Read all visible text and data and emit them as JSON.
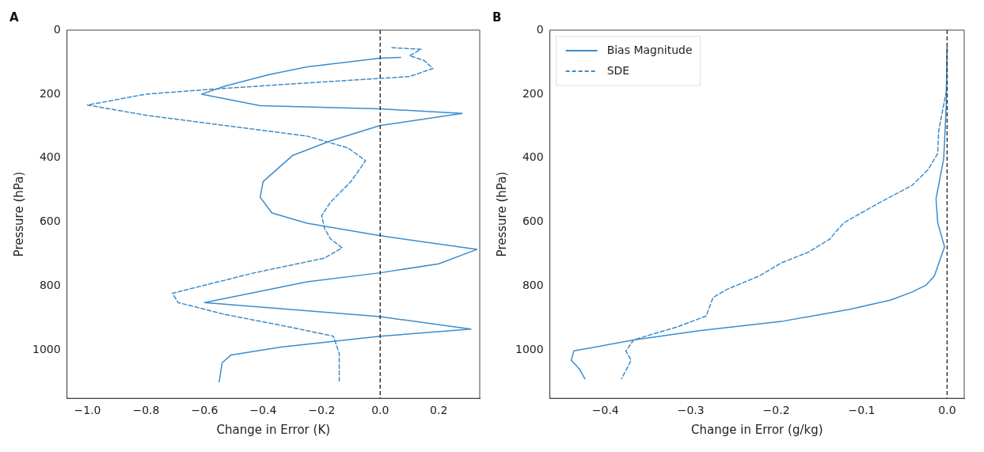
{
  "chart_data": [
    {
      "type": "line",
      "title": "A",
      "xlabel": "Change in Error (K)",
      "ylabel": "Pressure (hPa)",
      "xlim": [
        -1.07,
        0.34
      ],
      "ylim": [
        1150,
        0
      ],
      "xticks": [
        {
          "value": -1,
          "label": "−1.0"
        },
        {
          "value": -0.8,
          "label": "−0.8"
        },
        {
          "value": -0.6,
          "label": "−0.6"
        },
        {
          "value": -0.4,
          "label": "−0.4"
        },
        {
          "value": -0.2,
          "label": "−0.2"
        },
        {
          "value": 0,
          "label": "0.0"
        },
        0.2
      ],
      "yticks": [
        0,
        200,
        400,
        600,
        800,
        1000
      ],
      "grid": false,
      "legend": false,
      "marker": "none",
      "ref_lines": [
        {
          "axis": "x",
          "value": 0,
          "color": "#333333",
          "line_style": "dashed"
        }
      ],
      "series": [
        {
          "color": "#3d8ccb",
          "line_style": "solid",
          "x": [
            0.07,
            0,
            -0.25,
            -0.38,
            -0.53,
            -0.61,
            -0.41,
            0,
            0.28,
            0,
            -0.17,
            -0.3,
            -0.4,
            -0.41,
            -0.37,
            -0.25,
            0,
            0.33,
            0.2,
            0,
            -0.25,
            -0.6,
            -0.38,
            0,
            0.31,
            0,
            -0.34,
            -0.51,
            -0.54,
            -0.55
          ],
          "values": [
            85,
            88,
            115,
            139,
            175,
            200,
            236,
            246,
            260,
            298,
            346,
            392,
            473,
            522,
            571,
            603,
            642,
            685,
            730,
            758,
            786,
            851,
            867,
            895,
            934,
            956,
            990,
            1015,
            1039,
            1098
          ]
        },
        {
          "color": "#3d8ccb",
          "line_style": "dashed",
          "x": [
            0.04,
            0.14,
            0.1,
            0.15,
            0.18,
            0.1,
            0,
            -0.3,
            -0.58,
            -0.8,
            -1.0,
            -0.8,
            -0.53,
            -0.25,
            -0.11,
            -0.05,
            -0.1,
            -0.17,
            -0.2,
            -0.19,
            -0.17,
            -0.13,
            -0.19,
            -0.43,
            -0.71,
            -0.69,
            -0.53,
            -0.3,
            -0.16,
            -0.14,
            -0.14
          ],
          "values": [
            55,
            60,
            80,
            95,
            120,
            145,
            151,
            168,
            185,
            200,
            234,
            266,
            298,
            331,
            368,
            408,
            473,
            538,
            579,
            620,
            652,
            680,
            712,
            758,
            822,
            851,
            888,
            929,
            956,
            1010,
            1098
          ]
        }
      ]
    },
    {
      "type": "line",
      "title": "B",
      "xlabel": "Change in Error (g/kg)",
      "ylabel": "Pressure (hPa)",
      "xlim": [
        -0.465,
        0.02
      ],
      "ylim": [
        1150,
        0
      ],
      "xticks": [
        {
          "value": -0.4,
          "label": "−0.4"
        },
        {
          "value": -0.3,
          "label": "−0.3"
        },
        {
          "value": -0.2,
          "label": "−0.2"
        },
        {
          "value": -0.1,
          "label": "−0.1"
        },
        {
          "value": 0,
          "label": "0.0"
        }
      ],
      "yticks": [
        0,
        200,
        400,
        600,
        800,
        1000
      ],
      "grid": false,
      "legend": "top left",
      "marker": "none",
      "ref_lines": [
        {
          "axis": "x",
          "value": 0,
          "color": "#333333",
          "line_style": "dashed"
        }
      ],
      "series": [
        {
          "name": "Bias Magnitude",
          "color": "#3d8ccb",
          "line_style": "solid",
          "x": [
            0,
            -0.001,
            -0.004,
            -0.013,
            -0.011,
            -0.003,
            -0.015,
            -0.025,
            -0.041,
            -0.066,
            -0.114,
            -0.194,
            -0.29,
            -0.367,
            -0.437,
            -0.44,
            -0.43,
            -0.424
          ],
          "values": [
            52,
            235,
            402,
            527,
            602,
            677,
            768,
            797,
            818,
            843,
            872,
            910,
            939,
            968,
            1002,
            1031,
            1060,
            1089
          ]
        },
        {
          "name": "SDE",
          "color": "#3d8ccb",
          "line_style": "dashed",
          "x": [
            0,
            -0.001,
            -0.006,
            -0.01,
            -0.011,
            -0.022,
            -0.041,
            -0.082,
            -0.121,
            -0.132,
            -0.137,
            -0.162,
            -0.194,
            -0.22,
            -0.258,
            -0.274,
            -0.282,
            -0.316,
            -0.348,
            -0.367,
            -0.376,
            -0.37,
            -0.381
          ],
          "values": [
            52,
            193,
            260,
            318,
            385,
            435,
            485,
            543,
            602,
            635,
            652,
            693,
            727,
            768,
            810,
            835,
            893,
            927,
            952,
            968,
            1002,
            1031,
            1089
          ]
        }
      ]
    }
  ]
}
